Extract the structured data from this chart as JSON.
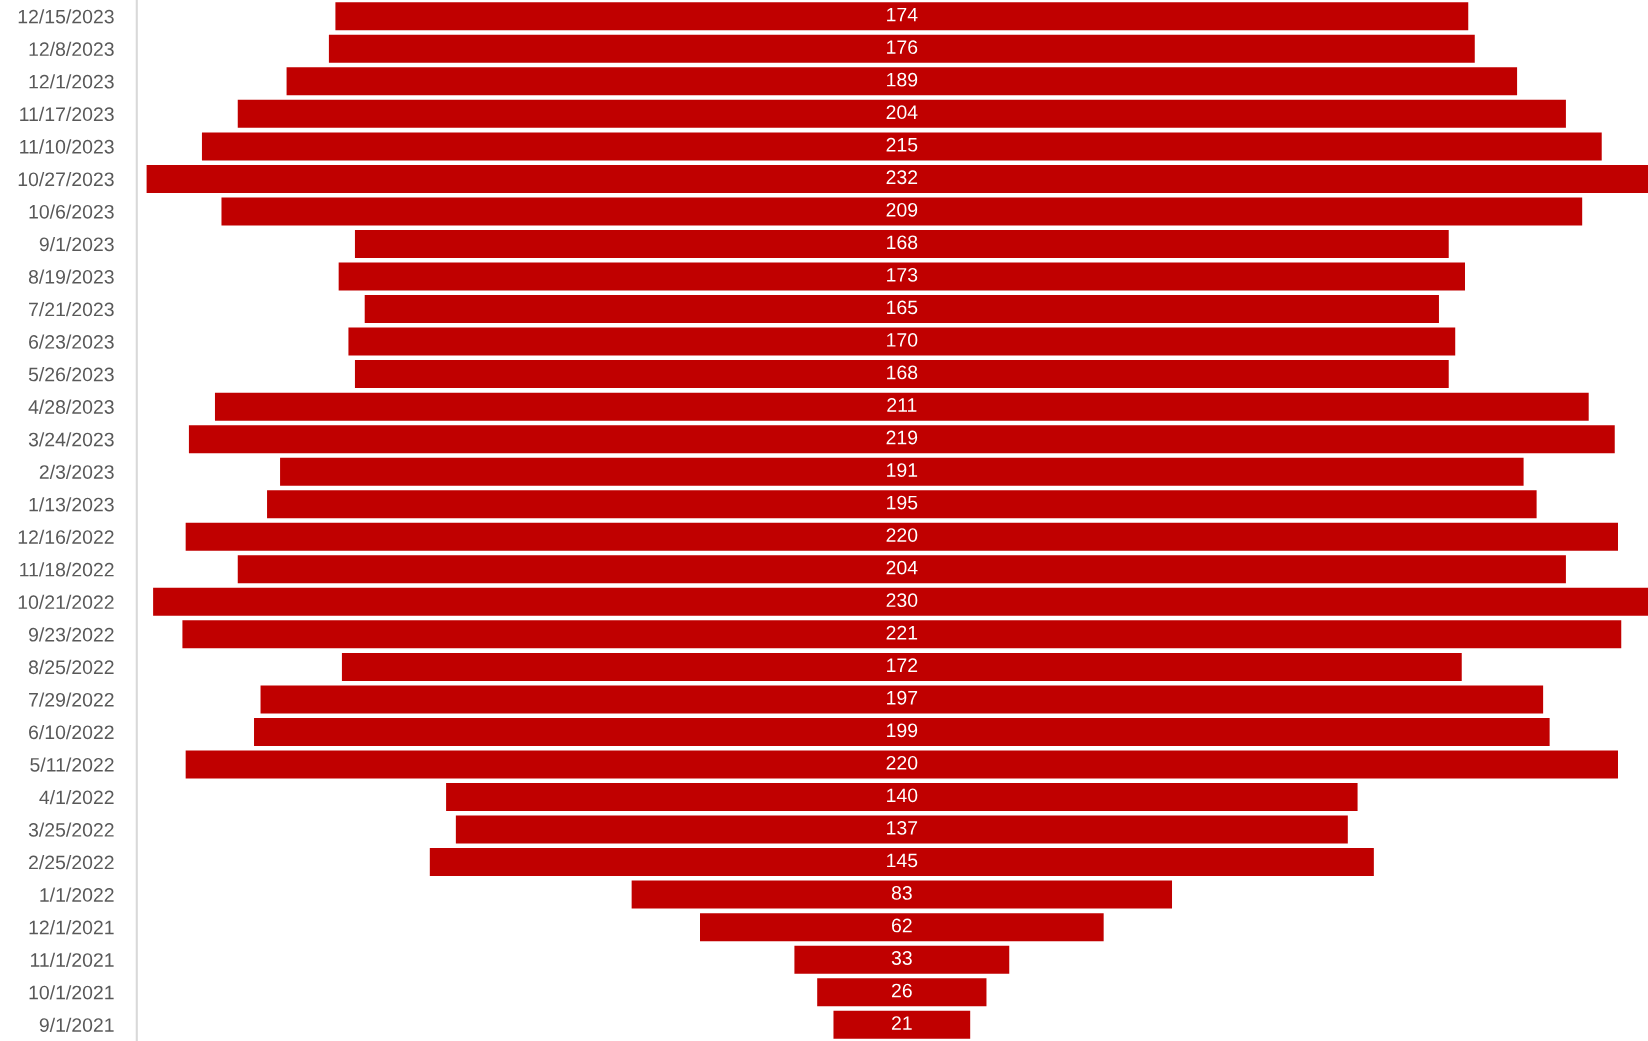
{
  "chart_data": {
    "type": "other",
    "categories": [
      "12/15/2023",
      "12/8/2023",
      "12/1/2023",
      "11/17/2023",
      "11/10/2023",
      "10/27/2023",
      "10/6/2023",
      "9/1/2023",
      "8/19/2023",
      "7/21/2023",
      "6/23/2023",
      "5/26/2023",
      "4/28/2023",
      "3/24/2023",
      "2/3/2023",
      "1/13/2023",
      "12/16/2022",
      "11/18/2022",
      "10/21/2022",
      "9/23/2022",
      "8/25/2022",
      "7/29/2022",
      "6/10/2022",
      "5/11/2022",
      "4/1/2022",
      "3/25/2022",
      "2/25/2022",
      "1/1/2022",
      "12/1/2021",
      "11/1/2021",
      "10/1/2021",
      "9/1/2021"
    ],
    "values": [
      174,
      176,
      189,
      204,
      215,
      232,
      209,
      168,
      173,
      165,
      170,
      168,
      211,
      219,
      191,
      195,
      220,
      204,
      230,
      221,
      172,
      197,
      199,
      220,
      140,
      137,
      145,
      83,
      62,
      33,
      26,
      21
    ],
    "color": "#c00000",
    "data_labels": true
  }
}
